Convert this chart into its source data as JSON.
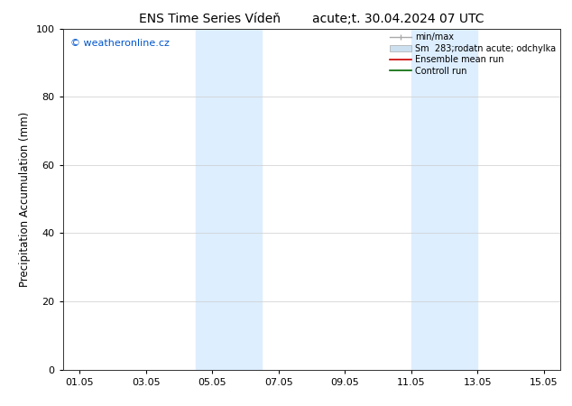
{
  "title_left": "ENS Time Series Vídeň",
  "title_right": "acute;t. 30.04.2024 07 UTC",
  "ylabel": "Precipitation Accumulation (mm)",
  "watermark": "© weatheronline.cz",
  "watermark_color": "#0055cc",
  "ylim": [
    0,
    100
  ],
  "yticks": [
    0,
    20,
    40,
    60,
    80,
    100
  ],
  "bg_color": "#ffffff",
  "plot_bg_color": "#ffffff",
  "shaded_regions": [
    {
      "x_start": 3.5,
      "x_end": 5.5,
      "color": "#ddeeff"
    },
    {
      "x_start": 10.0,
      "x_end": 12.0,
      "color": "#ddeeff"
    }
  ],
  "x_tick_labels": [
    "01.05",
    "03.05",
    "05.05",
    "07.05",
    "09.05",
    "11.05",
    "13.05",
    "15.05"
  ],
  "x_tick_positions": [
    0,
    2,
    4,
    6,
    8,
    10,
    12,
    14
  ],
  "xlim": [
    -0.5,
    14.5
  ],
  "legend_labels": [
    "min/max",
    "Sm  283;rodatn acute; odchylka",
    "Ensemble mean run",
    "Controll run"
  ],
  "line_color_minmax": "#aaaaaa",
  "patch_color_spread": "#cce0f0",
  "line_color_ensemble": "#cc0000",
  "line_color_control": "#006600",
  "title_fontsize": 10,
  "axis_fontsize": 8.5,
  "tick_fontsize": 8
}
